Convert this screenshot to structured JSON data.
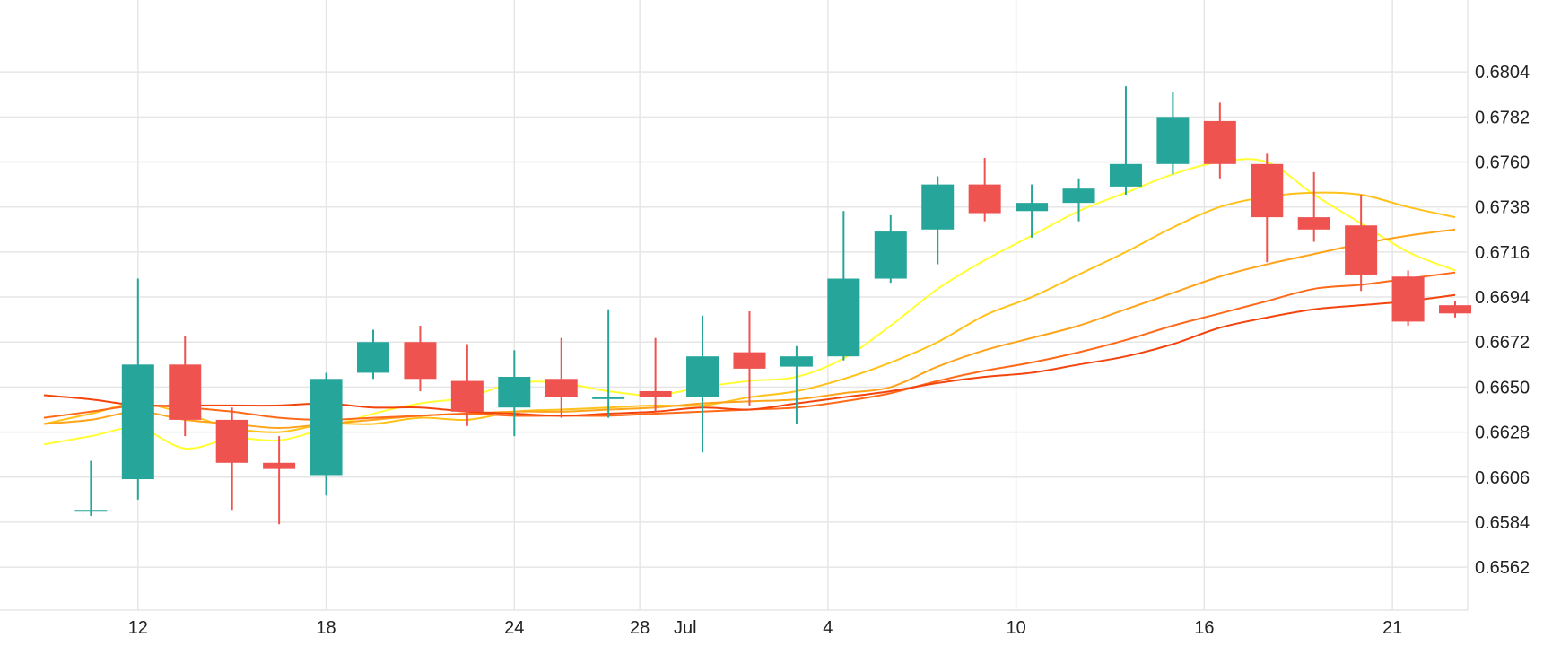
{
  "chart_data": {
    "type": "candlestick",
    "x_ticks": [
      {
        "label": "12",
        "day": 12
      },
      {
        "label": "18",
        "day": 18
      },
      {
        "label": "24",
        "day": 24
      },
      {
        "label": "28",
        "day": 28
      },
      {
        "label": "Jul",
        "day": 29.45
      },
      {
        "label": "4",
        "day": 34
      },
      {
        "label": "10",
        "day": 40
      },
      {
        "label": "16",
        "day": 46
      },
      {
        "label": "21",
        "day": 52
      }
    ],
    "y_ticks": [
      "0.6804",
      "0.6782",
      "0.6760",
      "0.6738",
      "0.6716",
      "0.6694",
      "0.6672",
      "0.6650",
      "0.6628",
      "0.6606",
      "0.6584",
      "0.6562"
    ],
    "ylim": [
      0.6541,
      0.6826
    ],
    "xlim": [
      7.6,
      54.4
    ],
    "colors": {
      "up": "#26a69a",
      "down": "#ef5350",
      "grid": "#e6e6e6",
      "text": "#222222"
    },
    "candles": [
      {
        "day": 10.5,
        "open": 0.659,
        "high": 0.6614,
        "low": 0.6587,
        "close": 0.659
      },
      {
        "day": 12,
        "open": 0.6605,
        "high": 0.6703,
        "low": 0.6595,
        "close": 0.6661
      },
      {
        "day": 13.5,
        "open": 0.6661,
        "high": 0.6675,
        "low": 0.6626,
        "close": 0.6634
      },
      {
        "day": 15,
        "open": 0.6634,
        "high": 0.664,
        "low": 0.659,
        "close": 0.6613
      },
      {
        "day": 16.5,
        "open": 0.6613,
        "high": 0.6626,
        "low": 0.6583,
        "close": 0.661
      },
      {
        "day": 18,
        "open": 0.6607,
        "high": 0.6657,
        "low": 0.6597,
        "close": 0.6654
      },
      {
        "day": 19.5,
        "open": 0.6657,
        "high": 0.6678,
        "low": 0.6654,
        "close": 0.6672
      },
      {
        "day": 21,
        "open": 0.6672,
        "high": 0.668,
        "low": 0.6648,
        "close": 0.6654
      },
      {
        "day": 22.5,
        "open": 0.6653,
        "high": 0.6671,
        "low": 0.6631,
        "close": 0.6638
      },
      {
        "day": 24,
        "open": 0.664,
        "high": 0.6668,
        "low": 0.6626,
        "close": 0.6655
      },
      {
        "day": 25.5,
        "open": 0.6654,
        "high": 0.6674,
        "low": 0.6635,
        "close": 0.6645
      },
      {
        "day": 27,
        "open": 0.6645,
        "high": 0.6688,
        "low": 0.6635,
        "close": 0.6645
      },
      {
        "day": 28.5,
        "open": 0.6648,
        "high": 0.6674,
        "low": 0.6638,
        "close": 0.6645
      },
      {
        "day": 30,
        "open": 0.6645,
        "high": 0.6685,
        "low": 0.6618,
        "close": 0.6665
      },
      {
        "day": 31.5,
        "open": 0.6667,
        "high": 0.6687,
        "low": 0.6641,
        "close": 0.6659
      },
      {
        "day": 33,
        "open": 0.666,
        "high": 0.667,
        "low": 0.6632,
        "close": 0.6665
      },
      {
        "day": 34.5,
        "open": 0.6665,
        "high": 0.6736,
        "low": 0.6663,
        "close": 0.6703
      },
      {
        "day": 36,
        "open": 0.6703,
        "high": 0.6734,
        "low": 0.6701,
        "close": 0.6726
      },
      {
        "day": 37.5,
        "open": 0.6727,
        "high": 0.6753,
        "low": 0.671,
        "close": 0.6749
      },
      {
        "day": 39,
        "open": 0.6749,
        "high": 0.6762,
        "low": 0.6731,
        "close": 0.6735
      },
      {
        "day": 40.5,
        "open": 0.6736,
        "high": 0.6749,
        "low": 0.6723,
        "close": 0.674
      },
      {
        "day": 42,
        "open": 0.674,
        "high": 0.6752,
        "low": 0.6731,
        "close": 0.6747
      },
      {
        "day": 43.5,
        "open": 0.6748,
        "high": 0.6797,
        "low": 0.6744,
        "close": 0.6759
      },
      {
        "day": 45,
        "open": 0.6759,
        "high": 0.6794,
        "low": 0.6754,
        "close": 0.6782
      },
      {
        "day": 46.5,
        "open": 0.678,
        "high": 0.6789,
        "low": 0.6752,
        "close": 0.6759
      },
      {
        "day": 48,
        "open": 0.6759,
        "high": 0.6764,
        "low": 0.6711,
        "close": 0.6733
      },
      {
        "day": 49.5,
        "open": 0.6733,
        "high": 0.6755,
        "low": 0.6721,
        "close": 0.6727
      },
      {
        "day": 51,
        "open": 0.6729,
        "high": 0.6744,
        "low": 0.6697,
        "close": 0.6705
      },
      {
        "day": 52.5,
        "open": 0.6704,
        "high": 0.6707,
        "low": 0.668,
        "close": 0.6682
      },
      {
        "day": 54,
        "open": 0.669,
        "high": 0.6692,
        "low": 0.6684,
        "close": 0.6686
      }
    ],
    "moving_averages": [
      {
        "color": "#ffff33",
        "points": [
          [
            9,
            0.6622
          ],
          [
            10.5,
            0.6626
          ],
          [
            12,
            0.663
          ],
          [
            13.5,
            0.662
          ],
          [
            15,
            0.6625
          ],
          [
            16.5,
            0.6624
          ],
          [
            18,
            0.663
          ],
          [
            19.5,
            0.6637
          ],
          [
            21,
            0.6642
          ],
          [
            22.5,
            0.6645
          ],
          [
            24,
            0.6652
          ],
          [
            25.5,
            0.6652
          ],
          [
            27,
            0.6648
          ],
          [
            28.5,
            0.6646
          ],
          [
            30,
            0.665
          ],
          [
            31.5,
            0.6653
          ],
          [
            33,
            0.6655
          ],
          [
            34.5,
            0.6664
          ],
          [
            36,
            0.668
          ],
          [
            37.5,
            0.6698
          ],
          [
            39,
            0.6712
          ],
          [
            40.5,
            0.6724
          ],
          [
            42,
            0.6736
          ],
          [
            43.5,
            0.6745
          ],
          [
            45,
            0.6754
          ],
          [
            46.5,
            0.676
          ],
          [
            48,
            0.676
          ],
          [
            49.5,
            0.6744
          ],
          [
            51,
            0.673
          ],
          [
            52.5,
            0.6716
          ],
          [
            54,
            0.6707
          ]
        ]
      },
      {
        "color": "#ffc21a",
        "points": [
          [
            9,
            0.6632
          ],
          [
            10.5,
            0.6637
          ],
          [
            12,
            0.6642
          ],
          [
            13.5,
            0.6637
          ],
          [
            15,
            0.663
          ],
          [
            16.5,
            0.6628
          ],
          [
            18,
            0.6632
          ],
          [
            19.5,
            0.6632
          ],
          [
            21,
            0.6635
          ],
          [
            22.5,
            0.6634
          ],
          [
            24,
            0.6638
          ],
          [
            25.5,
            0.6639
          ],
          [
            27,
            0.664
          ],
          [
            28.5,
            0.6641
          ],
          [
            30,
            0.6641
          ],
          [
            31.5,
            0.6645
          ],
          [
            33,
            0.6648
          ],
          [
            34.5,
            0.6654
          ],
          [
            36,
            0.6662
          ],
          [
            37.5,
            0.6672
          ],
          [
            39,
            0.6685
          ],
          [
            40.5,
            0.6694
          ],
          [
            42,
            0.6705
          ],
          [
            43.5,
            0.6716
          ],
          [
            45,
            0.6728
          ],
          [
            46.5,
            0.6738
          ],
          [
            48,
            0.6743
          ],
          [
            49.5,
            0.6745
          ],
          [
            51,
            0.6744
          ],
          [
            52.5,
            0.6738
          ],
          [
            54,
            0.6733
          ]
        ]
      },
      {
        "color": "#ffa31a",
        "points": [
          [
            9,
            0.6632
          ],
          [
            10.5,
            0.6634
          ],
          [
            12,
            0.6638
          ],
          [
            13.5,
            0.6634
          ],
          [
            15,
            0.6632
          ],
          [
            16.5,
            0.663
          ],
          [
            18,
            0.6632
          ],
          [
            19.5,
            0.6634
          ],
          [
            21,
            0.6636
          ],
          [
            22.5,
            0.6637
          ],
          [
            24,
            0.6638
          ],
          [
            25.5,
            0.6638
          ],
          [
            27,
            0.6639
          ],
          [
            28.5,
            0.664
          ],
          [
            30,
            0.6642
          ],
          [
            31.5,
            0.6643
          ],
          [
            33,
            0.6644
          ],
          [
            34.5,
            0.6647
          ],
          [
            36,
            0.665
          ],
          [
            37.5,
            0.666
          ],
          [
            39,
            0.6668
          ],
          [
            40.5,
            0.6674
          ],
          [
            42,
            0.668
          ],
          [
            43.5,
            0.6688
          ],
          [
            45,
            0.6696
          ],
          [
            46.5,
            0.6704
          ],
          [
            48,
            0.671
          ],
          [
            49.5,
            0.6715
          ],
          [
            51,
            0.672
          ],
          [
            52.5,
            0.6724
          ],
          [
            54,
            0.6727
          ]
        ]
      },
      {
        "color": "#ff6a1a",
        "points": [
          [
            9,
            0.6635
          ],
          [
            10.5,
            0.6638
          ],
          [
            12,
            0.6641
          ],
          [
            13.5,
            0.664
          ],
          [
            15,
            0.6638
          ],
          [
            16.5,
            0.6635
          ],
          [
            18,
            0.6634
          ],
          [
            19.5,
            0.6635
          ],
          [
            21,
            0.6636
          ],
          [
            22.5,
            0.6637
          ],
          [
            24,
            0.6636
          ],
          [
            25.5,
            0.6636
          ],
          [
            27,
            0.6636
          ],
          [
            28.5,
            0.6637
          ],
          [
            30,
            0.6638
          ],
          [
            31.5,
            0.6639
          ],
          [
            33,
            0.664
          ],
          [
            34.5,
            0.6643
          ],
          [
            36,
            0.6647
          ],
          [
            37.5,
            0.6653
          ],
          [
            39,
            0.6658
          ],
          [
            40.5,
            0.6662
          ],
          [
            42,
            0.6667
          ],
          [
            43.5,
            0.6673
          ],
          [
            45,
            0.668
          ],
          [
            46.5,
            0.6686
          ],
          [
            48,
            0.6692
          ],
          [
            49.5,
            0.6698
          ],
          [
            51,
            0.67
          ],
          [
            52.5,
            0.6703
          ],
          [
            54,
            0.6706
          ]
        ]
      },
      {
        "color": "#f4440d",
        "points": [
          [
            9,
            0.6646
          ],
          [
            10.5,
            0.6644
          ],
          [
            12,
            0.6641
          ],
          [
            13.5,
            0.6641
          ],
          [
            15,
            0.6641
          ],
          [
            16.5,
            0.6641
          ],
          [
            18,
            0.6642
          ],
          [
            19.5,
            0.664
          ],
          [
            21,
            0.664
          ],
          [
            22.5,
            0.6638
          ],
          [
            24,
            0.6637
          ],
          [
            25.5,
            0.6636
          ],
          [
            27,
            0.6637
          ],
          [
            28.5,
            0.6638
          ],
          [
            30,
            0.664
          ],
          [
            31.5,
            0.6639
          ],
          [
            33,
            0.6642
          ],
          [
            34.5,
            0.6645
          ],
          [
            36,
            0.6648
          ],
          [
            37.5,
            0.6652
          ],
          [
            39,
            0.6655
          ],
          [
            40.5,
            0.6657
          ],
          [
            42,
            0.6661
          ],
          [
            43.5,
            0.6665
          ],
          [
            45,
            0.6671
          ],
          [
            46.5,
            0.6679
          ],
          [
            48,
            0.6684
          ],
          [
            49.5,
            0.6688
          ],
          [
            51,
            0.669
          ],
          [
            52.5,
            0.6692
          ],
          [
            54,
            0.6695
          ]
        ]
      }
    ],
    "grid": true
  }
}
